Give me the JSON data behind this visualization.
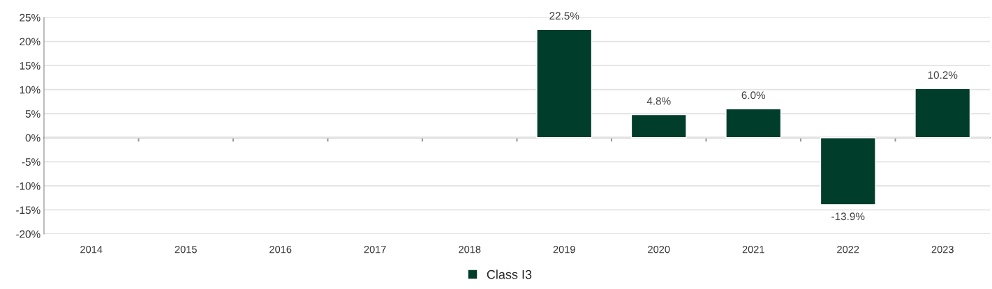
{
  "chart_data": {
    "type": "bar",
    "categories": [
      "2014",
      "2015",
      "2016",
      "2017",
      "2018",
      "2019",
      "2020",
      "2021",
      "2022",
      "2023"
    ],
    "series": [
      {
        "name": "Class I3",
        "color": "#003d2b",
        "values": [
          null,
          null,
          null,
          null,
          null,
          22.5,
          4.8,
          6.0,
          -13.9,
          10.2
        ],
        "value_labels": [
          null,
          null,
          null,
          null,
          null,
          "22.5%",
          "4.8%",
          "6.0%",
          "-13.9%",
          "10.2%"
        ]
      }
    ],
    "ylim": [
      -20,
      25
    ],
    "yticks": [
      {
        "value": -20,
        "label": "-20%"
      },
      {
        "value": -15,
        "label": "-15%"
      },
      {
        "value": -10,
        "label": "-10%"
      },
      {
        "value": -5,
        "label": "-5%"
      },
      {
        "value": 0,
        "label": "0%"
      },
      {
        "value": 5,
        "label": "5%"
      },
      {
        "value": 10,
        "label": "10%"
      },
      {
        "value": 15,
        "label": "15%"
      },
      {
        "value": 20,
        "label": "20%"
      },
      {
        "value": 25,
        "label": "25%"
      }
    ],
    "grid": "y",
    "legend": "bottom"
  }
}
